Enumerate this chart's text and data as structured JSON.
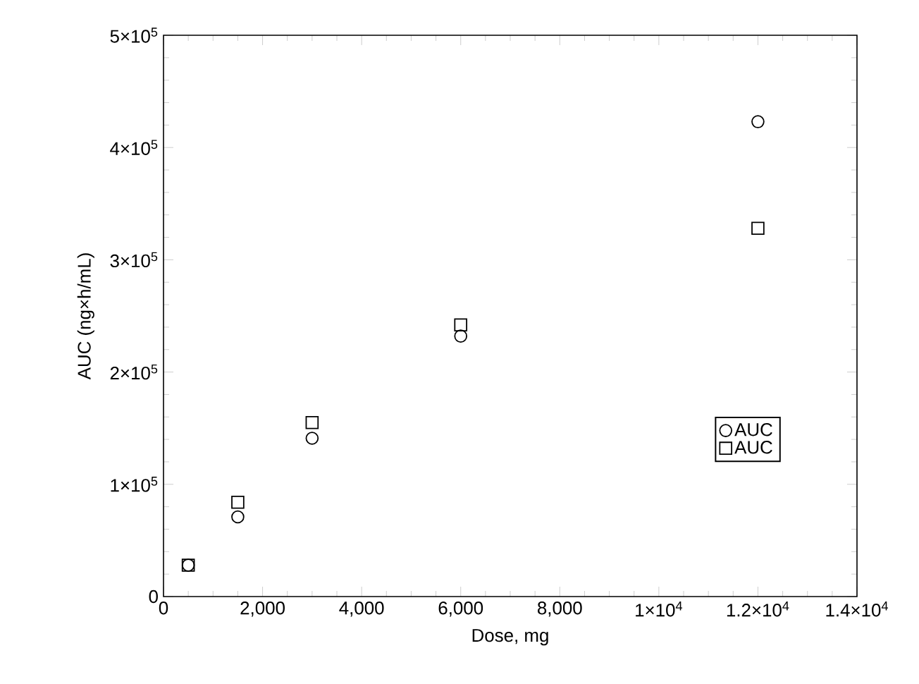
{
  "chart_data": {
    "type": "scatter",
    "xlabel": "Dose, mg",
    "ylabel": "AUC (ng×h/mL)",
    "x": [
      500,
      1500,
      3000,
      6000,
      12000
    ],
    "series": [
      {
        "name": "AUC",
        "color": "#000000",
        "marker": "circle",
        "values": [
          28000,
          71000,
          141000,
          232000,
          423000
        ]
      },
      {
        "name": "AUC",
        "color": "#000000",
        "marker": "square",
        "values": [
          28000,
          84000,
          155000,
          242000,
          328000
        ]
      }
    ],
    "xlim": [
      0,
      14000
    ],
    "ylim": [
      0,
      500000
    ],
    "xticks": [
      0,
      {
        "value": 2000,
        "label": "2,000"
      },
      {
        "value": 4000,
        "label": "4,000"
      },
      {
        "value": 6000,
        "label": "6,000"
      },
      {
        "value": 8000,
        "label": "8,000"
      },
      {
        "value": 10000,
        "label": "1×10$^{4}$"
      },
      {
        "value": 12000,
        "label": "1.2×10$^{4}$"
      },
      {
        "value": 14000,
        "label": "1.4×10$^{4}$"
      }
    ],
    "yticks": [
      0,
      {
        "value": 100000,
        "label": "1×10$^{5}$"
      },
      {
        "value": 200000,
        "label": "2×10$^{5}$"
      },
      {
        "value": 300000,
        "label": "3×10$^{5}$"
      },
      {
        "value": 400000,
        "label": "4×10$^{5}$"
      },
      {
        "value": 500000,
        "label": "5×10$^{5}$"
      }
    ],
    "legend": "right",
    "grid": false
  }
}
